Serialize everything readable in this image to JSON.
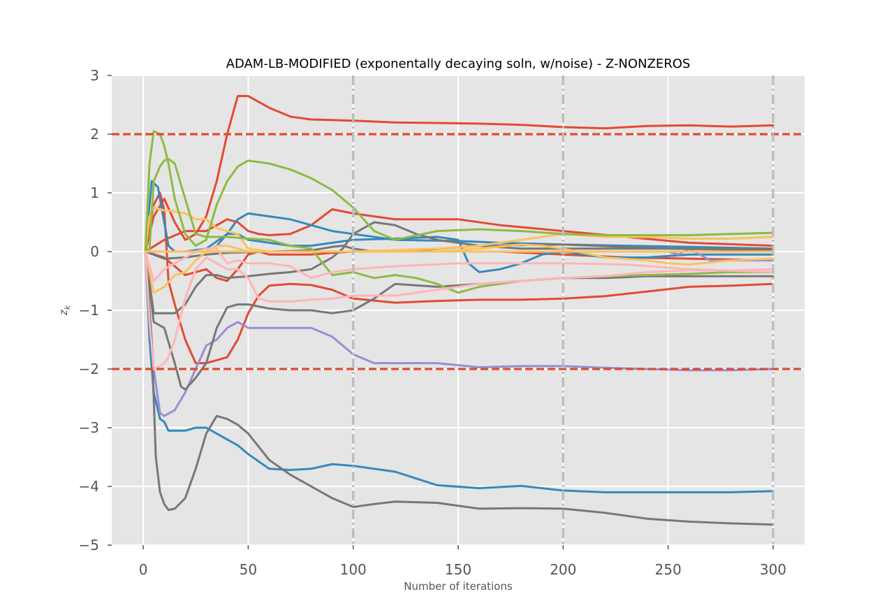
{
  "chart_data": {
    "type": "line",
    "title": "ADAM-LB-MODIFIED (exponentally decaying soln, w/noise) - Z-NONZEROS",
    "xlabel": "Number of iterations",
    "ylabel": "z",
    "ylabel_subscript": "k",
    "xlim": [
      -15,
      315
    ],
    "ylim": [
      -5,
      3
    ],
    "grid": true,
    "background": "#e5e5e5",
    "xticks": [
      0,
      50,
      100,
      150,
      200,
      250,
      300
    ],
    "xtick_labels": [
      "0",
      "50",
      "100",
      "150",
      "200",
      "250",
      "300"
    ],
    "yticks": [
      3,
      2,
      1,
      0,
      -1,
      -2,
      -3,
      -4,
      -5
    ],
    "ytick_labels": [
      "3",
      "2",
      "1",
      "0",
      "−1",
      "−2",
      "−3",
      "−4",
      "−5"
    ],
    "reference_lines": [
      {
        "axis": "y",
        "value": 2,
        "color": "#e24a33",
        "style": "dashed"
      },
      {
        "axis": "y",
        "value": -2,
        "color": "#e24a33",
        "style": "dashed"
      },
      {
        "axis": "x",
        "value": 100,
        "color": "#bbbbbb",
        "style": "dashdot"
      },
      {
        "axis": "x",
        "value": 200,
        "color": "#bbbbbb",
        "style": "dashdot"
      },
      {
        "axis": "x",
        "value": 300,
        "color": "#bbbbbb",
        "style": "dashdot"
      }
    ],
    "series": [
      {
        "color": "#e24a33",
        "x": [
          1,
          5,
          10,
          15,
          20,
          25,
          30,
          35,
          40,
          45,
          50,
          60,
          70,
          80,
          90,
          100,
          120,
          140,
          160,
          180,
          200,
          220,
          240,
          260,
          280,
          300
        ],
        "y": [
          0,
          0.6,
          0.9,
          0.5,
          0.2,
          0.3,
          0.6,
          1.2,
          2.0,
          2.65,
          2.65,
          2.45,
          2.3,
          2.25,
          2.24,
          2.23,
          2.2,
          2.19,
          2.18,
          2.16,
          2.12,
          2.1,
          2.14,
          2.15,
          2.13,
          2.15
        ]
      },
      {
        "color": "#e24a33",
        "x": [
          1,
          5,
          8,
          10,
          12,
          15,
          20,
          25,
          30,
          35,
          40,
          45,
          50,
          55,
          60,
          70,
          80,
          90,
          100,
          120,
          140,
          160,
          180,
          200,
          220,
          240,
          260,
          280,
          300
        ],
        "y": [
          0,
          0.8,
          1.0,
          0.7,
          -0.5,
          -0.9,
          -1.5,
          -1.9,
          -1.9,
          -1.85,
          -1.8,
          -1.5,
          -1.05,
          -0.75,
          -0.58,
          -0.55,
          -0.57,
          -0.65,
          -0.8,
          -0.87,
          -0.84,
          -0.82,
          -0.82,
          -0.8,
          -0.76,
          -0.68,
          -0.6,
          -0.58,
          -0.55
        ]
      },
      {
        "color": "#e24a33",
        "x": [
          1,
          10,
          20,
          30,
          35,
          40,
          45,
          50,
          55,
          60,
          70,
          80,
          90,
          100,
          120,
          150,
          170,
          200,
          230,
          260,
          300
        ],
        "y": [
          0,
          -0.1,
          -0.4,
          -0.3,
          -0.45,
          -0.5,
          -0.3,
          -0.05,
          0,
          -0.05,
          -0.05,
          -0.05,
          -0.02,
          0,
          0,
          0,
          0,
          -0.05,
          -0.1,
          -0.12,
          -0.15
        ]
      },
      {
        "color": "#e24a33",
        "x": [
          1,
          10,
          20,
          30,
          35,
          40,
          45,
          50,
          55,
          60,
          70,
          80,
          90,
          100,
          120,
          150,
          170,
          200,
          230,
          260,
          300
        ],
        "y": [
          0,
          0.2,
          0.35,
          0.35,
          0.45,
          0.55,
          0.5,
          0.35,
          0.3,
          0.28,
          0.3,
          0.45,
          0.72,
          0.65,
          0.55,
          0.55,
          0.45,
          0.35,
          0.25,
          0.15,
          0.1
        ]
      },
      {
        "color": "#348abd",
        "x": [
          1,
          3,
          5,
          8,
          10,
          12,
          15,
          20,
          25,
          30,
          35,
          40,
          45,
          50,
          60,
          70,
          80,
          90,
          100,
          120,
          140,
          160,
          180,
          200,
          220,
          240,
          260,
          280,
          300
        ],
        "y": [
          0,
          -1.5,
          -2.4,
          -2.85,
          -2.9,
          -3.05,
          -3.05,
          -3.05,
          -3.0,
          -3.0,
          -3.1,
          -3.2,
          -3.3,
          -3.45,
          -3.7,
          -3.72,
          -3.7,
          -3.62,
          -3.65,
          -3.75,
          -3.98,
          -4.03,
          -3.99,
          -4.07,
          -4.1,
          -4.1,
          -4.1,
          -4.1,
          -4.08
        ]
      },
      {
        "color": "#348abd",
        "x": [
          1,
          4,
          7,
          9,
          12,
          15,
          20,
          25,
          30,
          35,
          40,
          45,
          50,
          60,
          70,
          80,
          90,
          100,
          120,
          150,
          170,
          200,
          230,
          260,
          300
        ],
        "y": [
          0,
          1.2,
          1.1,
          0.7,
          0.1,
          0,
          0,
          0,
          0,
          0.1,
          0.3,
          0.55,
          0.65,
          0.6,
          0.55,
          0.45,
          0.35,
          0.3,
          0.2,
          0.18,
          0.15,
          0.12,
          0.1,
          0.08,
          0.05
        ]
      },
      {
        "color": "#348abd",
        "x": [
          1,
          20,
          30,
          40,
          45,
          50,
          60,
          70,
          80,
          90,
          100,
          120,
          140,
          150,
          155,
          160,
          170,
          180,
          190,
          200,
          220,
          240,
          260,
          280,
          300
        ],
        "y": [
          0,
          0,
          0.05,
          0.3,
          0.3,
          0.2,
          0.15,
          0.1,
          0.1,
          0.15,
          0.2,
          0.22,
          0.25,
          0.2,
          -0.2,
          -0.35,
          -0.3,
          -0.2,
          -0.05,
          0,
          -0.1,
          -0.1,
          -0.05,
          -0.05,
          -0.05
        ]
      },
      {
        "color": "#988ed5",
        "x": [
          1,
          5,
          8,
          10,
          15,
          20,
          25,
          30,
          35,
          40,
          45,
          50,
          60,
          70,
          80,
          90,
          100,
          110,
          120,
          140,
          160,
          180,
          200,
          220,
          240,
          260,
          280,
          300
        ],
        "y": [
          0,
          -2.0,
          -2.75,
          -2.8,
          -2.7,
          -2.4,
          -2.0,
          -1.6,
          -1.5,
          -1.3,
          -1.2,
          -1.3,
          -1.3,
          -1.3,
          -1.3,
          -1.45,
          -1.75,
          -1.9,
          -1.9,
          -1.9,
          -1.97,
          -1.95,
          -1.95,
          -1.98,
          -2.0,
          -2.02,
          -2.02,
          -2.0
        ]
      },
      {
        "color": "#988ed5",
        "x": [
          1,
          100,
          200,
          240,
          250,
          255,
          260,
          270,
          280,
          300
        ],
        "y": [
          0,
          0,
          0,
          0,
          0,
          -0.05,
          0.05,
          -0.15,
          -0.15,
          -0.15
        ]
      },
      {
        "color": "#777777",
        "x": [
          1,
          4,
          6,
          8,
          10,
          12,
          15,
          20,
          25,
          30,
          35,
          40,
          45,
          50,
          60,
          70,
          80,
          90,
          100,
          110,
          120,
          140,
          160,
          180,
          200,
          220,
          240,
          260,
          280,
          300
        ],
        "y": [
          0,
          -1.5,
          -3.5,
          -4.1,
          -4.3,
          -4.4,
          -4.38,
          -4.2,
          -3.7,
          -3.1,
          -2.8,
          -2.85,
          -2.95,
          -3.1,
          -3.55,
          -3.8,
          -4.0,
          -4.2,
          -4.35,
          -4.3,
          -4.26,
          -4.28,
          -4.38,
          -4.37,
          -4.38,
          -4.45,
          -4.55,
          -4.6,
          -4.63,
          -4.65
        ]
      },
      {
        "color": "#777777",
        "x": [
          1,
          5,
          10,
          15,
          18,
          20,
          25,
          30,
          35,
          40,
          45,
          50,
          60,
          70,
          80,
          90,
          100,
          110,
          120,
          140,
          160,
          180,
          200,
          220,
          240,
          260,
          280,
          300
        ],
        "y": [
          0,
          -1.2,
          -1.3,
          -1.9,
          -2.3,
          -2.35,
          -2.15,
          -1.9,
          -1.3,
          -0.95,
          -0.9,
          -0.9,
          -0.97,
          -1.0,
          -1.0,
          -1.05,
          -1.0,
          -0.8,
          -0.55,
          -0.6,
          -0.55,
          -0.5,
          -0.45,
          -0.45,
          -0.42,
          -0.42,
          -0.42,
          -0.42
        ]
      },
      {
        "color": "#777777",
        "x": [
          1,
          5,
          10,
          15,
          20,
          25,
          30,
          35,
          40,
          50,
          60,
          70,
          80,
          90,
          95,
          100,
          110,
          120,
          130,
          140,
          160,
          180,
          200,
          230,
          260,
          300
        ],
        "y": [
          0,
          -1.05,
          -1.05,
          -1.05,
          -0.9,
          -0.6,
          -0.4,
          -0.4,
          -0.45,
          -0.42,
          -0.38,
          -0.35,
          -0.3,
          -0.1,
          0.05,
          0.3,
          0.5,
          0.45,
          0.3,
          0.2,
          0.1,
          0.05,
          0.05,
          0.05,
          0.05,
          0.05
        ]
      },
      {
        "color": "#777777",
        "x": [
          1,
          10,
          20,
          30,
          40,
          60,
          80,
          90,
          95,
          100,
          110,
          130,
          160,
          200,
          250,
          300
        ],
        "y": [
          0,
          -0.12,
          -0.1,
          -0.05,
          -0.02,
          0,
          0.02,
          0.08,
          0.1,
          0.05,
          0.0,
          0.02,
          0.1,
          0.12,
          0.05,
          0.02
        ]
      },
      {
        "color": "#fbc15e",
        "x": [
          1,
          3,
          5,
          8,
          10,
          12,
          15,
          20,
          25,
          30,
          35,
          40,
          45,
          50,
          60,
          100,
          140,
          160,
          180,
          190,
          200,
          220,
          240,
          250,
          260,
          280,
          300
        ],
        "y": [
          0,
          0.6,
          0.75,
          0.72,
          0.7,
          0.7,
          0.68,
          0.65,
          0.55,
          0.55,
          0.4,
          0.35,
          0.3,
          0.05,
          0,
          0,
          0,
          0.05,
          0.12,
          0.1,
          0.05,
          -0.1,
          -0.15,
          -0.2,
          -0.22,
          -0.15,
          -0.12
        ]
      },
      {
        "color": "#fbc15e",
        "x": [
          1,
          5,
          10,
          15,
          20,
          25,
          30,
          35,
          40,
          45,
          50,
          60,
          100,
          140,
          160,
          170,
          180,
          190,
          200,
          220,
          240,
          260,
          280,
          300
        ],
        "y": [
          0,
          -0.7,
          -0.6,
          -0.4,
          -0.35,
          -0.15,
          0.0,
          0.1,
          0.1,
          0.05,
          0,
          0,
          0,
          0.05,
          0.1,
          0.15,
          0.2,
          0.25,
          0.3,
          0.25,
          0.25,
          0.22,
          0.22,
          0.25
        ]
      },
      {
        "color": "#8eba42",
        "x": [
          1,
          3,
          5,
          8,
          10,
          12,
          15,
          20,
          25,
          30,
          35,
          40,
          45,
          50,
          60,
          70,
          80,
          90,
          100,
          110,
          120,
          140,
          160,
          180,
          200,
          220,
          240,
          260,
          280,
          300
        ],
        "y": [
          0,
          1.5,
          2.05,
          2.0,
          1.8,
          1.5,
          0.9,
          0.3,
          0.1,
          0.2,
          0.8,
          1.2,
          1.45,
          1.55,
          1.5,
          1.4,
          1.25,
          1.05,
          0.75,
          0.35,
          0.2,
          0.35,
          0.38,
          0.35,
          0.3,
          0.28,
          0.28,
          0.28,
          0.3,
          0.32
        ]
      },
      {
        "color": "#8eba42",
        "x": [
          1,
          3,
          5,
          8,
          10,
          12,
          15,
          20,
          25,
          30,
          40,
          50,
          60,
          70,
          80,
          90,
          100,
          110,
          120,
          130,
          140,
          150,
          160,
          180,
          200,
          220,
          240,
          260,
          280,
          300
        ],
        "y": [
          0,
          0.05,
          1.2,
          1.45,
          1.55,
          1.58,
          1.5,
          0.9,
          0.3,
          0.25,
          0.25,
          0.22,
          0.2,
          0.1,
          0.05,
          -0.4,
          -0.35,
          -0.45,
          -0.4,
          -0.45,
          -0.55,
          -0.7,
          -0.6,
          -0.5,
          -0.45,
          -0.42,
          -0.4,
          -0.38,
          -0.35,
          -0.35
        ]
      },
      {
        "color": "#ffb5b8",
        "x": [
          1,
          3,
          5,
          8,
          10,
          12,
          15,
          20,
          25,
          30,
          35,
          40,
          45,
          50,
          55,
          60,
          70,
          80,
          90,
          100,
          120,
          140,
          160,
          180,
          200,
          220,
          240,
          260,
          280,
          300
        ],
        "y": [
          0,
          -1.2,
          -2.0,
          -1.95,
          -1.9,
          -1.8,
          -1.5,
          -0.8,
          -0.3,
          -0.1,
          -0.2,
          -0.3,
          -0.3,
          -0.45,
          -0.8,
          -0.85,
          -0.85,
          -0.82,
          -0.8,
          -0.75,
          -0.75,
          -0.65,
          -0.55,
          -0.5,
          -0.45,
          -0.42,
          -0.35,
          -0.32,
          -0.32,
          -0.3
        ]
      },
      {
        "color": "#ffb5b8",
        "x": [
          1,
          5,
          10,
          15,
          20,
          25,
          30,
          35,
          40,
          45,
          50,
          60,
          70,
          80,
          90,
          100,
          120,
          150,
          180,
          200,
          230,
          260,
          300
        ],
        "y": [
          0,
          -0.5,
          -0.3,
          -0.2,
          -0.1,
          0,
          0.05,
          0.05,
          -0.2,
          -0.15,
          -0.2,
          -0.2,
          -0.25,
          -0.45,
          -0.35,
          -0.3,
          -0.25,
          -0.2,
          -0.2,
          -0.2,
          -0.22,
          -0.3,
          -0.35
        ]
      },
      {
        "color": "#fbc15e",
        "x": [
          1,
          300
        ],
        "y": [
          0,
          0
        ]
      }
    ]
  }
}
